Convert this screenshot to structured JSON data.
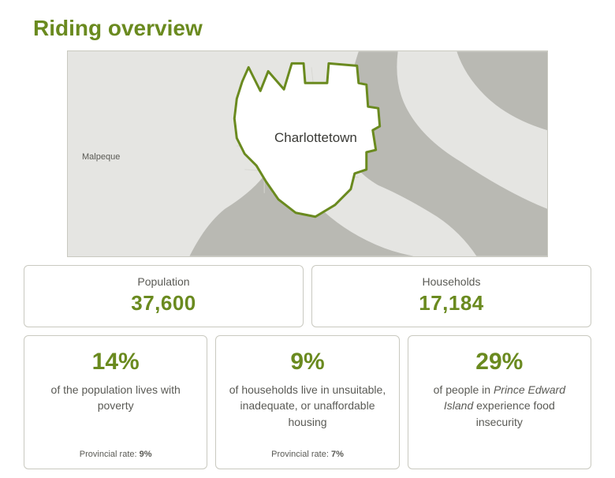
{
  "title": "Riding overview",
  "colors": {
    "accent": "#6a8a1f",
    "box_border": "#c9c9c0",
    "text_muted": "#5a5a55",
    "map_bg": "#e5e5e2",
    "map_water": "#b9b9b3",
    "map_land": "#e5e5e2",
    "map_riding_fill": "#ffffff",
    "map_riding_stroke": "#6a8a1f",
    "map_road": "#d7d7d2"
  },
  "map": {
    "neighbor_label": "Malpeque",
    "city_label": "Charlottetown",
    "riding_stroke_width": 3
  },
  "stats": {
    "population": {
      "label": "Population",
      "value": "37,600"
    },
    "households": {
      "label": "Households",
      "value": "17,184"
    }
  },
  "metrics": [
    {
      "pct": "14%",
      "desc_plain": "of the population lives with poverty",
      "desc_html": "of the population lives with poverty",
      "provincial_label": "Provincial rate:",
      "provincial_value": "9%"
    },
    {
      "pct": "9%",
      "desc_plain": "of households live in unsuitable, inadequate, or unaffordable housing",
      "desc_html": "of households live in unsuitable, inadequate, or unaffordable housing",
      "provincial_label": "Provincial rate:",
      "provincial_value": "7%"
    },
    {
      "pct": "29%",
      "desc_plain": "of people in Prince Edward Island experience food insecurity",
      "desc_html": "of people in <em>Prince Edward Island</em> experience food insecurity",
      "provincial_label": "",
      "provincial_value": ""
    }
  ]
}
